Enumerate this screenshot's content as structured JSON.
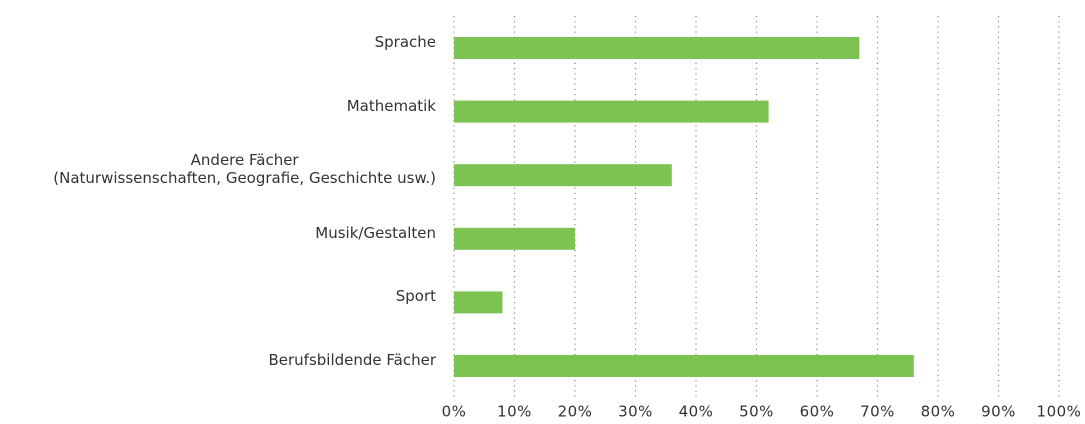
{
  "chart_data": {
    "type": "barh",
    "categories": [
      "Sprache",
      "Mathematik",
      "Andere Fächer\n(Naturwissenschaften, Geografie, Geschichte usw.)",
      "Musik/Gestalten",
      "Sport",
      "Berufsbildende Fächer"
    ],
    "values": [
      67,
      52,
      36,
      20,
      8,
      76
    ],
    "color": "#7dc352",
    "xlim": [
      0,
      100
    ],
    "xticks": [
      {
        "value": 0,
        "label": "0%"
      },
      {
        "value": 10,
        "label": "10%"
      },
      {
        "value": 20,
        "label": "20%"
      },
      {
        "value": 30,
        "label": "30%"
      },
      {
        "value": 40,
        "label": "40%"
      },
      {
        "value": 50,
        "label": "50%"
      },
      {
        "value": 60,
        "label": "60%"
      },
      {
        "value": 70,
        "label": "70%"
      },
      {
        "value": 80,
        "label": "80%"
      },
      {
        "value": 90,
        "label": "90%"
      },
      {
        "value": 100,
        "label": "100%"
      }
    ],
    "grid": true
  }
}
